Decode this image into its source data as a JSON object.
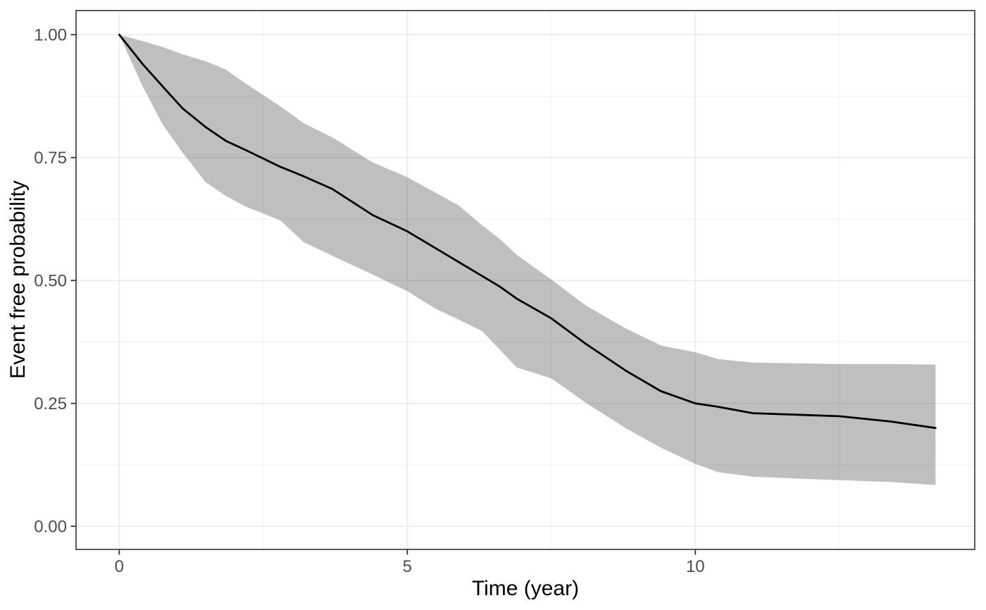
{
  "chart_data": {
    "type": "area",
    "title": "",
    "xlabel": "Time (year)",
    "ylabel": "Event free probability",
    "legend_position": "none",
    "grid": {
      "major": true,
      "minor": true
    },
    "x_axis": {
      "ticks": [
        0,
        5,
        10
      ],
      "tick_labels": [
        "0",
        "5",
        "10"
      ],
      "minor_ticks": [
        2.5,
        7.5,
        12.5
      ],
      "range": [
        -0.75,
        14.85
      ]
    },
    "y_axis": {
      "ticks": [
        0.0,
        0.25,
        0.5,
        0.75,
        1.0
      ],
      "tick_labels": [
        "0.00",
        "0.25",
        "0.50",
        "0.75",
        "1.00"
      ],
      "minor_ticks": [
        0.125,
        0.375,
        0.625,
        0.875
      ],
      "range": [
        -0.047,
        1.049
      ]
    },
    "time": [
      0,
      0.4,
      0.75,
      1.1,
      1.5,
      1.85,
      2.2,
      2.8,
      3.2,
      3.7,
      4.4,
      5.0,
      5.5,
      5.9,
      6.3,
      6.6,
      6.9,
      7.5,
      8.1,
      8.8,
      9.4,
      10.0,
      10.4,
      11.0,
      12.0,
      12.5,
      13.4,
      14.17
    ],
    "series": [
      {
        "name": "event-free-probability-estimate",
        "type": "line",
        "color": "#000000",
        "values": [
          1.0,
          0.941,
          0.895,
          0.85,
          0.812,
          0.784,
          0.765,
          0.731,
          0.712,
          0.686,
          0.633,
          0.6,
          0.565,
          0.537,
          0.509,
          0.488,
          0.463,
          0.423,
          0.371,
          0.316,
          0.275,
          0.25,
          0.243,
          0.23,
          0.226,
          0.224,
          0.213,
          0.2
        ]
      },
      {
        "name": "confidence-band-upper",
        "type": "ribbon-upper",
        "values": [
          1.0,
          0.987,
          0.975,
          0.96,
          0.946,
          0.929,
          0.9,
          0.854,
          0.82,
          0.791,
          0.74,
          0.71,
          0.678,
          0.652,
          0.612,
          0.585,
          0.552,
          0.502,
          0.449,
          0.402,
          0.368,
          0.354,
          0.34,
          0.333,
          0.331,
          0.33,
          0.33,
          0.329
        ]
      },
      {
        "name": "confidence-band-lower",
        "type": "ribbon-lower",
        "values": [
          1.0,
          0.896,
          0.818,
          0.76,
          0.7,
          0.672,
          0.65,
          0.622,
          0.578,
          0.55,
          0.512,
          0.478,
          0.442,
          0.42,
          0.397,
          0.36,
          0.323,
          0.301,
          0.251,
          0.199,
          0.16,
          0.127,
          0.11,
          0.101,
          0.096,
          0.094,
          0.09,
          0.084
        ]
      }
    ],
    "colors": {
      "line": "#000000",
      "band_fill": "#000000",
      "band_opacity": 0.25,
      "grid_major": "#ebebeb",
      "grid_minor": "#efefef",
      "panel_border": "#333333",
      "tick_mark": "#333333",
      "tick_label": "#4d4d4d",
      "axis_title": "#000000",
      "background": "#ffffff"
    }
  }
}
